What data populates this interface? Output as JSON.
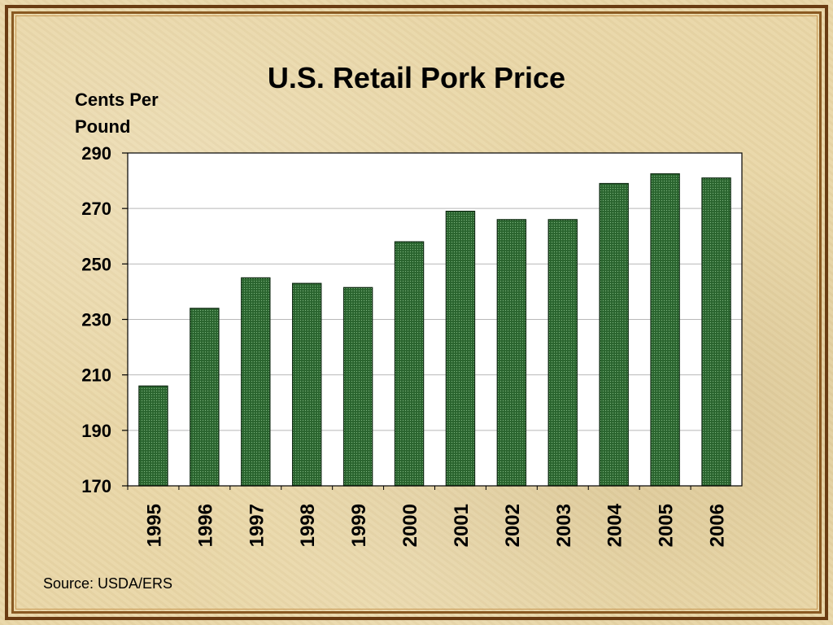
{
  "slide": {
    "source": "Source: USDA/ERS"
  },
  "chart_data": {
    "type": "bar",
    "title": "U.S. Retail Pork Price",
    "ylabel_lines": [
      "Cents Per",
      "Pound"
    ],
    "xlabel": "",
    "categories": [
      "1995",
      "1996",
      "1997",
      "1998",
      "1999",
      "2000",
      "2001",
      "2002",
      "2003",
      "2004",
      "2005",
      "2006"
    ],
    "values": [
      206,
      234,
      245,
      243,
      241.5,
      258,
      269,
      266,
      266,
      279,
      282.5,
      281
    ],
    "ylim": [
      170,
      290
    ],
    "yticks": [
      170,
      190,
      210,
      230,
      250,
      270,
      290
    ],
    "grid": true,
    "legend": "none",
    "bar_color": "#2e6b33",
    "bar_edge_color": "#0f2a12",
    "plot_background": "#ffffff"
  }
}
